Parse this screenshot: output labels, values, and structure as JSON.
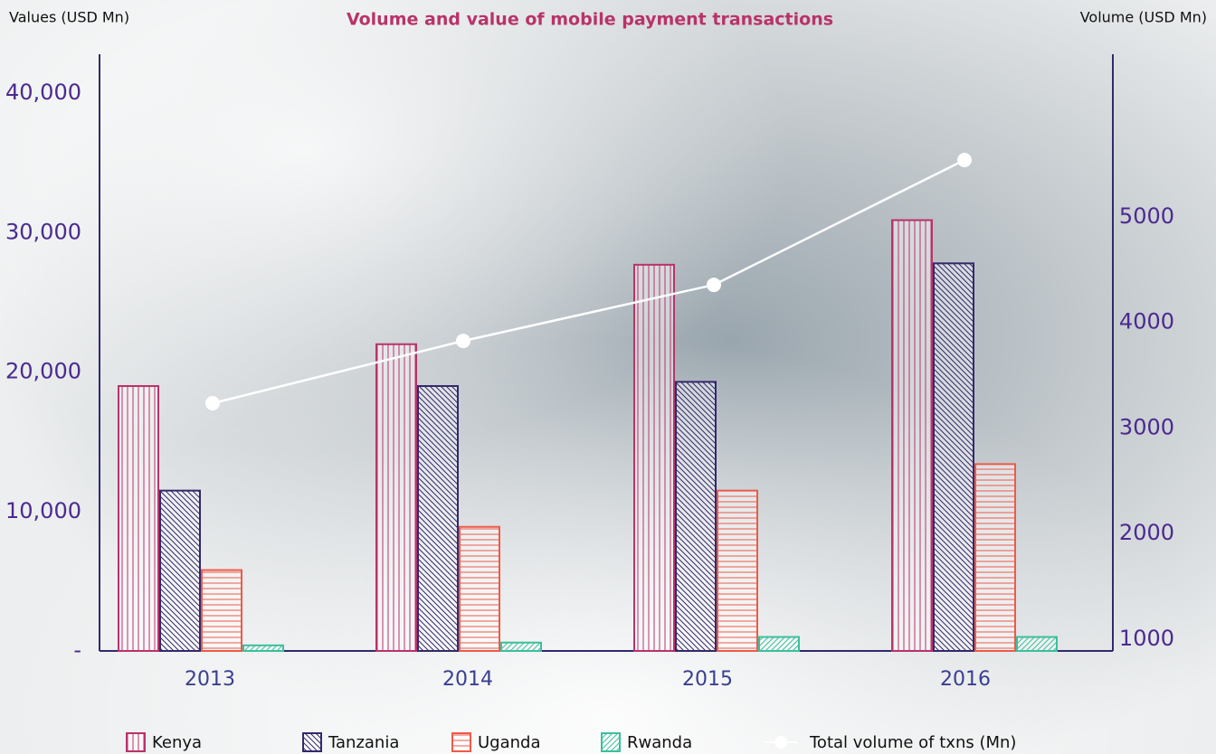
{
  "chart_data": {
    "type": "bar",
    "title": "Volume and value of mobile payment transactions",
    "y_label": "Values (USD Mn)",
    "y2_label": "Volume (USD Mn)",
    "categories": [
      "2013",
      "2014",
      "2015",
      "2016"
    ],
    "series": [
      {
        "name": "Kenya",
        "color": "#b8336a",
        "hatch": "vertical",
        "values": [
          19000,
          22000,
          27700,
          30900
        ]
      },
      {
        "name": "Tanzania",
        "color": "#33296b",
        "hatch": "diagonal-down",
        "values": [
          11500,
          19000,
          19300,
          27800
        ]
      },
      {
        "name": "Uganda",
        "color": "#ee5a48",
        "hatch": "horizontal",
        "values": [
          5800,
          8900,
          11500,
          13400
        ]
      },
      {
        "name": "Rwanda",
        "color": "#3cbf9c",
        "hatch": "diagonal-up",
        "values": [
          400,
          600,
          1000,
          1000
        ]
      },
      {
        "name": "Total volume of txns (Mn)",
        "color": "#ffffff",
        "type": "line",
        "axis": "y2",
        "values": [
          3235,
          3825,
          4356,
          5538
        ]
      }
    ],
    "ylim": [
      0,
      42800
    ],
    "yticks": [
      {
        "value": 0,
        "label": "-"
      },
      {
        "value": 10000,
        "label": "10,000"
      },
      {
        "value": 20000,
        "label": "20,000"
      },
      {
        "value": 30000,
        "label": "30,000"
      },
      {
        "value": 40000,
        "label": "40,000"
      }
    ],
    "y2lim": [
      889,
      6540
    ],
    "y2ticks": [
      1000,
      2000,
      3000,
      4000,
      5000
    ]
  }
}
